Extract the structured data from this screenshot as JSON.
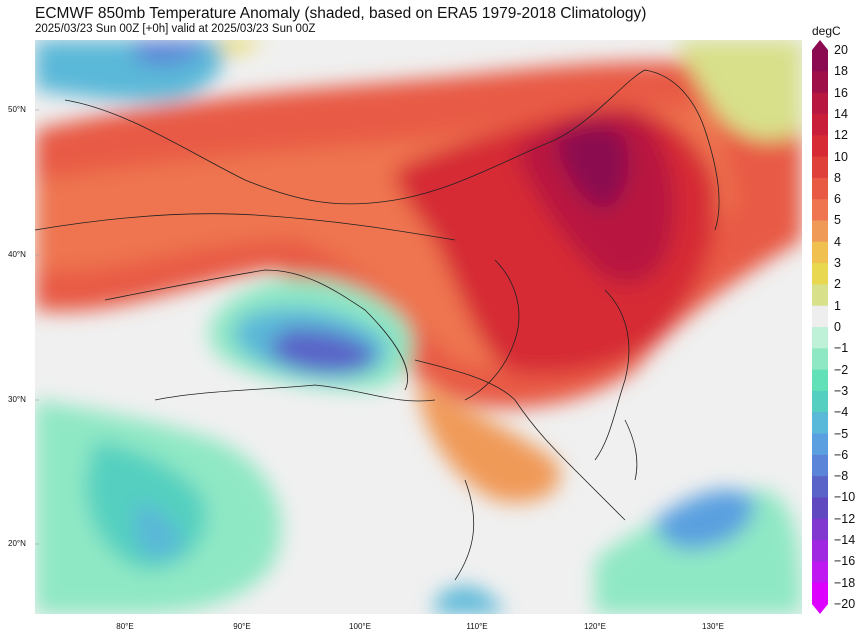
{
  "header": {
    "title": "ECMWF 850mb Temperature Anomaly (shaded, based on ERA5 1979-2018 Climatology)",
    "subtitle": "2025/03/23 Sun 00Z [+0h] valid at 2025/03/23 Sun 00Z"
  },
  "map": {
    "lat_labels": [
      "50°N",
      "40°N",
      "30°N",
      "20°N"
    ],
    "lon_labels": [
      "80°E",
      "90°E",
      "100°E",
      "110°E",
      "120°E",
      "130°E"
    ],
    "background_color": "#f0f0f0",
    "border_color": "#222222"
  },
  "colorbar": {
    "unit": "degC",
    "levels": [
      "20",
      "18",
      "16",
      "14",
      "12",
      "10",
      "8",
      "6",
      "5",
      "4",
      "3",
      "2",
      "1",
      "0",
      "−1",
      "−2",
      "−3",
      "−4",
      "−5",
      "−6",
      "−8",
      "−10",
      "−12",
      "−14",
      "−16",
      "−18",
      "−20"
    ],
    "colors": [
      "#8b0a50",
      "#a01048",
      "#b81840",
      "#c81e3a",
      "#d62a34",
      "#e0403a",
      "#e85a44",
      "#ee7550",
      "#f09a58",
      "#f0c050",
      "#e8d850",
      "#d8e08a",
      "#eeeeee",
      "#bff0d8",
      "#8fe8c4",
      "#62e0b8",
      "#55d0c0",
      "#5ab8d8",
      "#5aa0e0",
      "#5a84d8",
      "#5a64c8",
      "#6048c0",
      "#8038d0",
      "#a028e0",
      "#c018f0",
      "#dd00ff"
    ]
  }
}
